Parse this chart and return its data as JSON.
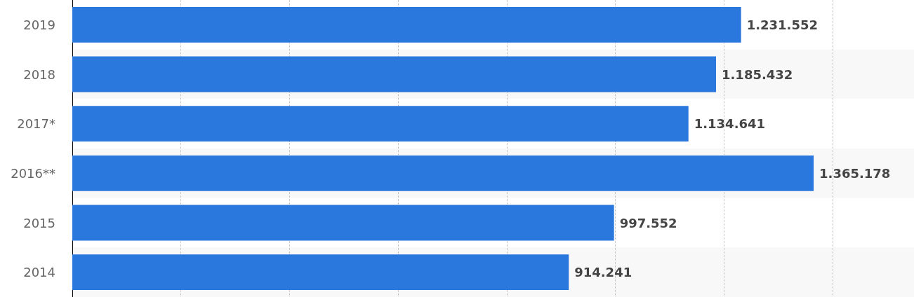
{
  "chart_data": {
    "type": "bar",
    "orientation": "horizontal",
    "categories": [
      "2019",
      "2018",
      "2017*",
      "2016**",
      "2015",
      "2014"
    ],
    "values": [
      1231552,
      1185432,
      1134641,
      1365178,
      997552,
      914241
    ],
    "value_labels": [
      "1.231.552",
      "1.185.432",
      "1.134.641",
      "1.365.178",
      "997.552",
      "914.241"
    ],
    "color": "#2a77dd",
    "xlim": [
      0,
      1550000
    ],
    "xticks": [
      {
        "value": 0,
        "label": null
      },
      {
        "value": 200000,
        "label": null
      },
      {
        "value": 400000,
        "label": null
      },
      {
        "value": 600000,
        "label": null
      },
      {
        "value": 800000,
        "label": null
      },
      {
        "value": 1000000,
        "label": null
      },
      {
        "value": 1200000,
        "label": null
      },
      {
        "value": 1400000,
        "label": null
      }
    ],
    "grid": "x",
    "tick_labels": "y"
  }
}
